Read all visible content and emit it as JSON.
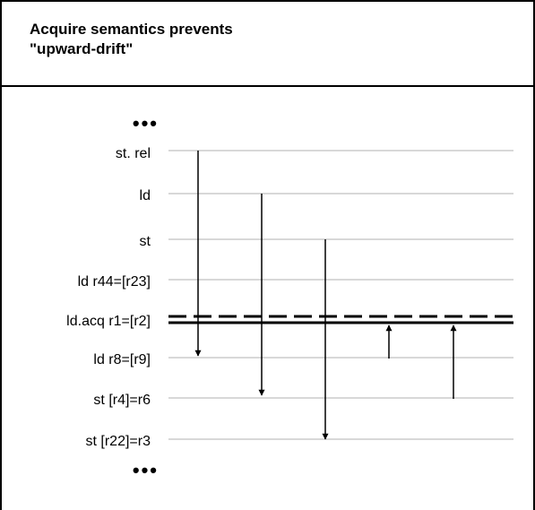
{
  "title": {
    "line1": "Acquire semantics prevents",
    "line2": "\"upward-drift\""
  },
  "ellipsis_top": "•••",
  "ellipsis_bottom": "•••",
  "instructions": [
    "st. rel",
    "ld",
    "st",
    "ld r44=[r23]",
    "ld.acq r1=[r2]",
    "ld r8=[r9]",
    "st [r4]=r6",
    "st [r22]=r3"
  ],
  "barrier_instruction_index": 4,
  "arrows": [
    {
      "from_instruction": 0,
      "to_instruction": 5,
      "direction": "down"
    },
    {
      "from_instruction": 1,
      "to_instruction": 6,
      "direction": "down"
    },
    {
      "from_instruction": 2,
      "to_instruction": 7,
      "direction": "down"
    },
    {
      "from_instruction": 5,
      "to_instruction": 4,
      "direction": "up",
      "blocked": true
    },
    {
      "from_instruction": 6,
      "to_instruction": 4,
      "direction": "up",
      "blocked": true
    }
  ],
  "colors": {
    "line": "#000000",
    "guide": "#b0b0b0",
    "text": "#000000",
    "background": "#ffffff"
  }
}
